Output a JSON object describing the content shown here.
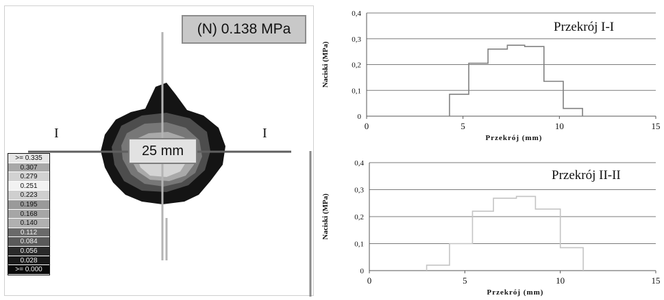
{
  "map": {
    "n_label": "(N) 0.138 MPa",
    "dim_label": "25 mm",
    "section_left": "I",
    "section_right": "I"
  },
  "legend": [
    {
      "label": ">= 0.335",
      "color": "#e6e6e6"
    },
    {
      "label": "0.307",
      "color": "#a8a8a8"
    },
    {
      "label": "0.279",
      "color": "#d2d2d2"
    },
    {
      "label": "0.251",
      "color": "#f2f2f2"
    },
    {
      "label": "0.223",
      "color": "#cfcfcf"
    },
    {
      "label": "0.195",
      "color": "#9a9a9a"
    },
    {
      "label": "0.168",
      "color": "#a6a6a6"
    },
    {
      "label": "0.140",
      "color": "#b0b0b0"
    },
    {
      "label": "0.112",
      "color": "#6a6a6a"
    },
    {
      "label": "0.084",
      "color": "#5a5a5a"
    },
    {
      "label": "0.056",
      "color": "#2a2a2a"
    },
    {
      "label": "0.028",
      "color": "#1a1a1a"
    },
    {
      "label": ">= 0.000",
      "color": "#0a0a0a"
    }
  ],
  "chart_data": [
    {
      "type": "line",
      "title": "Przekrój I-I",
      "xlabel": "Przekrój (mm)",
      "ylabel": "Naciski (MPa)",
      "xlim": [
        0,
        15
      ],
      "ylim": [
        0,
        0.4
      ],
      "xticks": [
        "0",
        "5",
        "10",
        "15"
      ],
      "yticks": [
        "0",
        "0,1",
        "0,2",
        "0,3",
        "0,4"
      ],
      "grid": true,
      "line_color": "#808080",
      "steps": [
        {
          "x": 4.3,
          "y": 0.0
        },
        {
          "x": 4.3,
          "y": 0.085
        },
        {
          "x": 5.3,
          "y": 0.085
        },
        {
          "x": 5.3,
          "y": 0.205
        },
        {
          "x": 6.3,
          "y": 0.205
        },
        {
          "x": 6.3,
          "y": 0.26
        },
        {
          "x": 7.3,
          "y": 0.26
        },
        {
          "x": 7.3,
          "y": 0.275
        },
        {
          "x": 8.2,
          "y": 0.275
        },
        {
          "x": 8.2,
          "y": 0.27
        },
        {
          "x": 9.2,
          "y": 0.27
        },
        {
          "x": 9.2,
          "y": 0.135
        },
        {
          "x": 10.2,
          "y": 0.135
        },
        {
          "x": 10.2,
          "y": 0.03
        },
        {
          "x": 11.2,
          "y": 0.03
        },
        {
          "x": 11.2,
          "y": 0.0
        }
      ]
    },
    {
      "type": "line",
      "title": "Przekrój II-II",
      "xlabel": "Przekrój (mm)",
      "ylabel": "Naciski (MPa)",
      "xlim": [
        0,
        15
      ],
      "ylim": [
        0,
        0.4
      ],
      "xticks": [
        "0",
        "5",
        "10",
        "15"
      ],
      "yticks": [
        "0",
        "0,1",
        "0,2",
        "0,3",
        "0,4"
      ],
      "grid": true,
      "line_color": "#c4c4c4",
      "steps": [
        {
          "x": 3.0,
          "y": 0.0
        },
        {
          "x": 3.0,
          "y": 0.02
        },
        {
          "x": 4.2,
          "y": 0.02
        },
        {
          "x": 4.2,
          "y": 0.1
        },
        {
          "x": 5.4,
          "y": 0.1
        },
        {
          "x": 5.4,
          "y": 0.22
        },
        {
          "x": 6.5,
          "y": 0.22
        },
        {
          "x": 6.5,
          "y": 0.268
        },
        {
          "x": 7.7,
          "y": 0.268
        },
        {
          "x": 7.7,
          "y": 0.275
        },
        {
          "x": 8.7,
          "y": 0.275
        },
        {
          "x": 8.7,
          "y": 0.228
        },
        {
          "x": 10.0,
          "y": 0.228
        },
        {
          "x": 10.0,
          "y": 0.085
        },
        {
          "x": 11.2,
          "y": 0.085
        },
        {
          "x": 11.2,
          "y": 0.0
        }
      ]
    }
  ]
}
